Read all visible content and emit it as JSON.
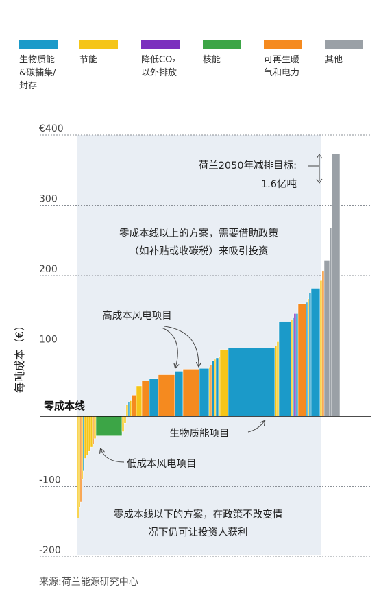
{
  "legend": [
    {
      "label": "生物质能\n&碳捕集/\n封存",
      "color": "#1b9ac9"
    },
    {
      "label": "节能",
      "color": "#f5c518"
    },
    {
      "label": "降低CO₂\n以外排放",
      "color": "#7b2fbe"
    },
    {
      "label": "核能",
      "color": "#3ca546"
    },
    {
      "label": "可再生暖\n气和电力",
      "color": "#f58a1f"
    },
    {
      "label": "其他",
      "color": "#9aa0a6"
    }
  ],
  "source": "来源:荷兰能源研究中心",
  "annotations": {
    "target_line1": "荷兰2050年减排目标:",
    "target_line2": "1.6亿吨",
    "above_line1": "零成本线以上的方案，需要借助政策",
    "above_line2": "（如补贴或收碳税）来吸引投资",
    "high_wind": "高成本风电项目",
    "biomass": "生物质能项目",
    "low_wind": "低成本风电项目",
    "below_line1": "零成本线以下的方案，在政策不改变情",
    "below_line2": "况下仍可让投资人获利",
    "zero_line": "零成本线"
  },
  "chart_data": {
    "type": "bar",
    "ylabel": "每吨成本（€）",
    "ylim": [
      -200,
      400
    ],
    "yticks": [
      {
        "value": 400,
        "label": "€400"
      },
      {
        "value": 300,
        "label": "300"
      },
      {
        "value": 200,
        "label": "200"
      },
      {
        "value": 100,
        "label": "100"
      },
      {
        "value": -100,
        "label": "-100"
      },
      {
        "value": -200,
        "label": "-200"
      }
    ],
    "bars": [
      {
        "w": 2,
        "v": -145,
        "c": "#f5c518"
      },
      {
        "w": 2,
        "v": -130,
        "c": "#f5c518"
      },
      {
        "w": 2,
        "v": -122,
        "c": "#f58a1f"
      },
      {
        "w": 2,
        "v": -90,
        "c": "#f5c518"
      },
      {
        "w": 2,
        "v": -78,
        "c": "#1b9ac9"
      },
      {
        "w": 3,
        "v": -60,
        "c": "#f5c518"
      },
      {
        "w": 3,
        "v": -55,
        "c": "#f5c518"
      },
      {
        "w": 3,
        "v": -50,
        "c": "#f5c518"
      },
      {
        "w": 3,
        "v": -44,
        "c": "#f5c518"
      },
      {
        "w": 2,
        "v": -40,
        "c": "#f58a1f"
      },
      {
        "w": 3,
        "v": -32,
        "c": "#f5c518"
      },
      {
        "w": 38,
        "v": -28,
        "c": "#3ca546"
      },
      {
        "w": 3,
        "v": -22,
        "c": "#f5c518"
      },
      {
        "w": 3,
        "v": -10,
        "c": "#f5c518"
      },
      {
        "w": 3,
        "v": 16,
        "c": "#f5c518"
      },
      {
        "w": 2,
        "v": 20,
        "c": "#1b9ac9"
      },
      {
        "w": 3,
        "v": 22,
        "c": "#f5c518"
      },
      {
        "w": 7,
        "v": 30,
        "c": "#f58a1f"
      },
      {
        "w": 8,
        "v": 43,
        "c": "#f5c518"
      },
      {
        "w": 11,
        "v": 50,
        "c": "#f58a1f"
      },
      {
        "w": 13,
        "v": 53,
        "c": "#1b9ac9"
      },
      {
        "w": 24,
        "v": 59,
        "c": "#f58a1f"
      },
      {
        "w": 12,
        "v": 64,
        "c": "#1b9ac9"
      },
      {
        "w": 24,
        "v": 67,
        "c": "#f58a1f"
      },
      {
        "w": 14,
        "v": 68,
        "c": "#1b9ac9"
      },
      {
        "w": 2,
        "v": 70,
        "c": "#f5c518"
      },
      {
        "w": 2,
        "v": 73,
        "c": "#f58a1f"
      },
      {
        "w": 4,
        "v": 79,
        "c": "#1b9ac9"
      },
      {
        "w": 2,
        "v": 81,
        "c": "#f5c518"
      },
      {
        "w": 4,
        "v": 83,
        "c": "#1b9ac9"
      },
      {
        "w": 2,
        "v": 85,
        "c": "#f5c518"
      },
      {
        "w": 12,
        "v": 95,
        "c": "#f5c518"
      },
      {
        "w": 68,
        "v": 97,
        "c": "#1b9ac9"
      },
      {
        "w": 3,
        "v": 100,
        "c": "#f5c518"
      },
      {
        "w": 3,
        "v": 106,
        "c": "#f5c518"
      },
      {
        "w": 18,
        "v": 135,
        "c": "#1b9ac9"
      },
      {
        "w": 2,
        "v": 138,
        "c": "#f5c518"
      },
      {
        "w": 2,
        "v": 140,
        "c": "#1b9ac9"
      },
      {
        "w": 3,
        "v": 146,
        "c": "#7b2fbe"
      },
      {
        "w": 3,
        "v": 146,
        "c": "#1b9ac9"
      },
      {
        "w": 12,
        "v": 160,
        "c": "#f58a1f"
      },
      {
        "w": 2,
        "v": 162,
        "c": "#1b9ac9"
      },
      {
        "w": 2,
        "v": 167,
        "c": "#f5c518"
      },
      {
        "w": 3,
        "v": 175,
        "c": "#1b9ac9"
      },
      {
        "w": 13,
        "v": 182,
        "c": "#1b9ac9"
      },
      {
        "w": 3,
        "v": 193,
        "c": "#f5c518"
      },
      {
        "w": 3,
        "v": 207,
        "c": "#f58a1f"
      },
      {
        "w": 8,
        "v": 222,
        "c": "#9aa0a6"
      },
      {
        "w": 3,
        "v": 268,
        "c": "#9aa0a6"
      },
      {
        "w": 12,
        "v": 373,
        "c": "#9aa0a6"
      }
    ]
  }
}
